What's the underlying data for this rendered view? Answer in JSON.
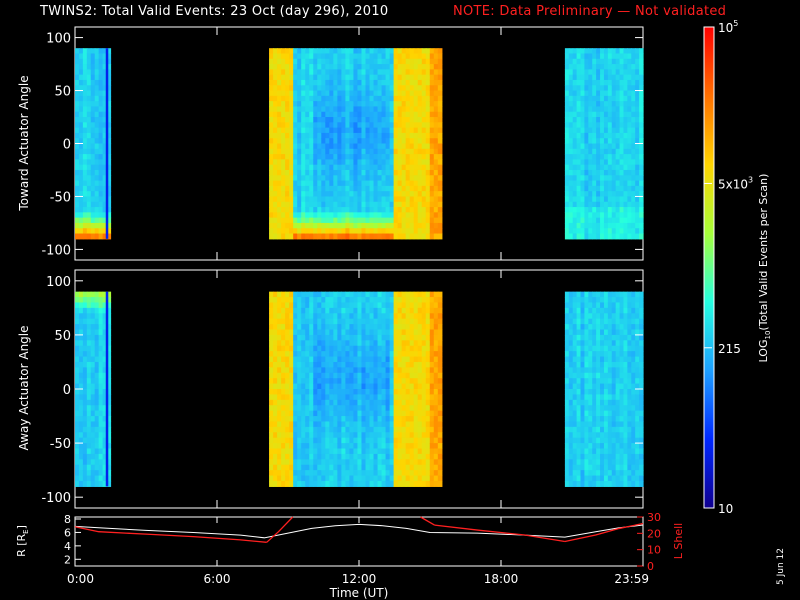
{
  "header": {
    "title": "TWINS2: Total Valid Events: 23 Oct (day 296), 2010",
    "note": "NOTE: Data Preliminary — Not validated",
    "note_color": "#ff2020"
  },
  "date_stamp": "5 Jun 12",
  "colorbar": {
    "label": "LOG10(Total Valid Events per Scan)",
    "label_base": "LOG",
    "label_sub": "10",
    "label_rest": "(Total Valid Events per Scan)",
    "ticks": [
      {
        "value": 10,
        "text": "10"
      },
      {
        "value": 215,
        "text": "215"
      },
      {
        "value": 5000,
        "text": "5x10",
        "sup": "3"
      },
      {
        "value": 100000,
        "text": "10",
        "sup": "5"
      }
    ],
    "range": [
      10,
      100000
    ],
    "scale": "log",
    "colormap": [
      "#10008f",
      "#0028ff",
      "#1ea0ff",
      "#25ffe0",
      "#a6ff3a",
      "#ffd400",
      "#ff7000",
      "#ff0000"
    ]
  },
  "chart_data": [
    {
      "type": "heatmap",
      "panel": "toward",
      "ylabel": "Toward Actuator Angle",
      "ylim": [
        -110,
        110
      ],
      "yticks": [
        -100,
        -50,
        0,
        50,
        100
      ],
      "xlim": [
        0,
        24
      ],
      "xticks": [
        0,
        6,
        12,
        18,
        24
      ],
      "data_angle_range": [
        -90,
        90
      ],
      "coverage_hours": [
        [
          0.0,
          1.5
        ],
        [
          8.2,
          15.5
        ],
        [
          20.7,
          24.0
        ]
      ],
      "bright_blocks_hours": [
        [
          8.2,
          9.2
        ],
        [
          13.5,
          15.5
        ]
      ],
      "low_angle_enhancement_deg": [
        -90,
        -75
      ]
    },
    {
      "type": "heatmap",
      "panel": "away",
      "ylabel": "Away Actuator Angle",
      "ylim": [
        -110,
        110
      ],
      "yticks": [
        -100,
        -50,
        0,
        50,
        100
      ],
      "xlim": [
        0,
        24
      ],
      "xticks": [
        0,
        6,
        12,
        18,
        24
      ],
      "data_angle_range": [
        -90,
        90
      ],
      "coverage_hours": [
        [
          0.0,
          1.5
        ],
        [
          8.2,
          15.5
        ],
        [
          20.7,
          24.0
        ]
      ],
      "bright_blocks_hours": [
        [
          8.2,
          9.2
        ],
        [
          13.5,
          15.5
        ]
      ]
    },
    {
      "type": "line",
      "panel": "orbit",
      "xlabel": "Time (UT)",
      "xlim": [
        0,
        24
      ],
      "xticks": [
        0,
        6,
        12,
        18,
        24
      ],
      "xtick_labels": [
        "0:00",
        "6:00",
        "12:00",
        "18:00",
        "23:59"
      ],
      "left_axis": {
        "label": "R [RE]",
        "label_base": "R [R",
        "label_sub": "E",
        "label_end": "]",
        "ticks": [
          2,
          4,
          6,
          8
        ],
        "ylim": [
          1,
          8.3
        ],
        "color": "#ffffff"
      },
      "right_axis": {
        "label": "L Shell",
        "ticks": [
          0,
          10,
          20,
          30
        ],
        "ylim": [
          0,
          30
        ],
        "color": "#ff2020"
      },
      "series": [
        {
          "axis": "left",
          "color": "#ffffff",
          "x": [
            0,
            1,
            3,
            5,
            7,
            8,
            9,
            10,
            11,
            12,
            13,
            14,
            15,
            17,
            19,
            20.7,
            22,
            23,
            24
          ],
          "y": [
            6.9,
            6.7,
            6.3,
            6.0,
            5.6,
            5.2,
            5.9,
            6.6,
            7.0,
            7.2,
            7.0,
            6.6,
            6.0,
            5.9,
            5.6,
            5.3,
            6.1,
            6.7,
            7.1
          ]
        },
        {
          "axis": "right",
          "color": "#ff2020",
          "segments": [
            {
              "x": [
                0,
                1,
                3,
                5,
                7,
                8.1
              ],
              "y": [
                24,
                21,
                19.5,
                18,
                16,
                14.5
              ]
            },
            {
              "x": [
                8.1,
                8.6,
                9.2
              ],
              "y": [
                14.5,
                21,
                30
              ]
            },
            {
              "x": [
                14.6,
                15.2
              ],
              "y": [
                30,
                25
              ]
            },
            {
              "x": [
                15.2,
                17,
                19,
                20.7
              ],
              "y": [
                25,
                22,
                19,
                15
              ]
            },
            {
              "x": [
                20.7,
                22,
                23,
                24
              ],
              "y": [
                15,
                19,
                23,
                26
              ]
            }
          ]
        }
      ]
    }
  ]
}
